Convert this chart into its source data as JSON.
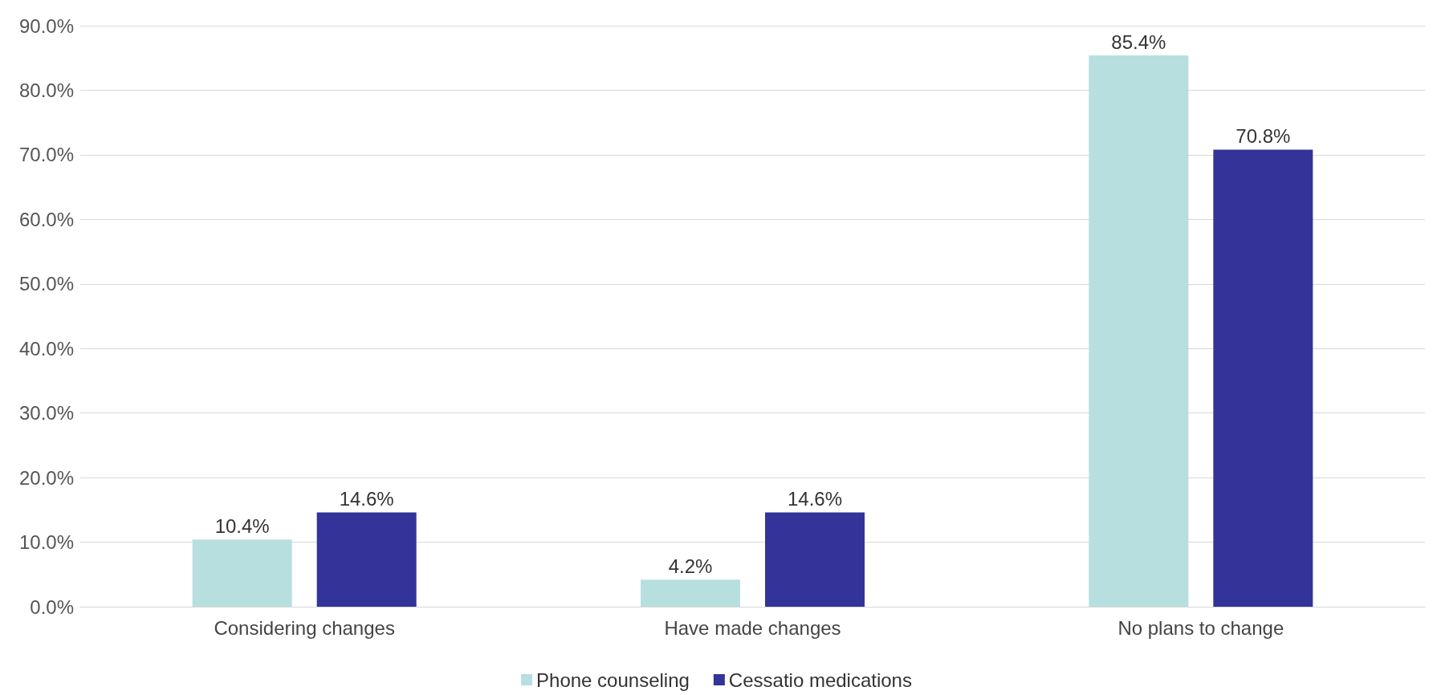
{
  "chart_data": {
    "type": "bar",
    "categories": [
      "Considering changes",
      "Have made changes",
      "No plans to change"
    ],
    "series": [
      {
        "name": "Phone counseling",
        "color": "#b8dfe0",
        "values": [
          10.4,
          4.2,
          85.4
        ],
        "value_labels": [
          "10.4%",
          "4.2%",
          "85.4%"
        ]
      },
      {
        "name": "Cessatio medications",
        "color": "#333399",
        "values": [
          14.6,
          14.6,
          70.8
        ],
        "value_labels": [
          "14.6%",
          "14.6%",
          "70.8%"
        ]
      }
    ],
    "ylim": [
      0,
      90
    ],
    "yticks": [
      {
        "value": 0,
        "label": "0.0%"
      },
      {
        "value": 10,
        "label": "10.0%"
      },
      {
        "value": 20,
        "label": "20.0%"
      },
      {
        "value": 30,
        "label": "30.0%"
      },
      {
        "value": 40,
        "label": "40.0%"
      },
      {
        "value": 50,
        "label": "50.0%"
      },
      {
        "value": 60,
        "label": "60.0%"
      },
      {
        "value": 70,
        "label": "70.0%"
      },
      {
        "value": 80,
        "label": "80.0%"
      },
      {
        "value": 90,
        "label": "90.0%"
      }
    ],
    "grid": "y",
    "legend": "bottom"
  }
}
